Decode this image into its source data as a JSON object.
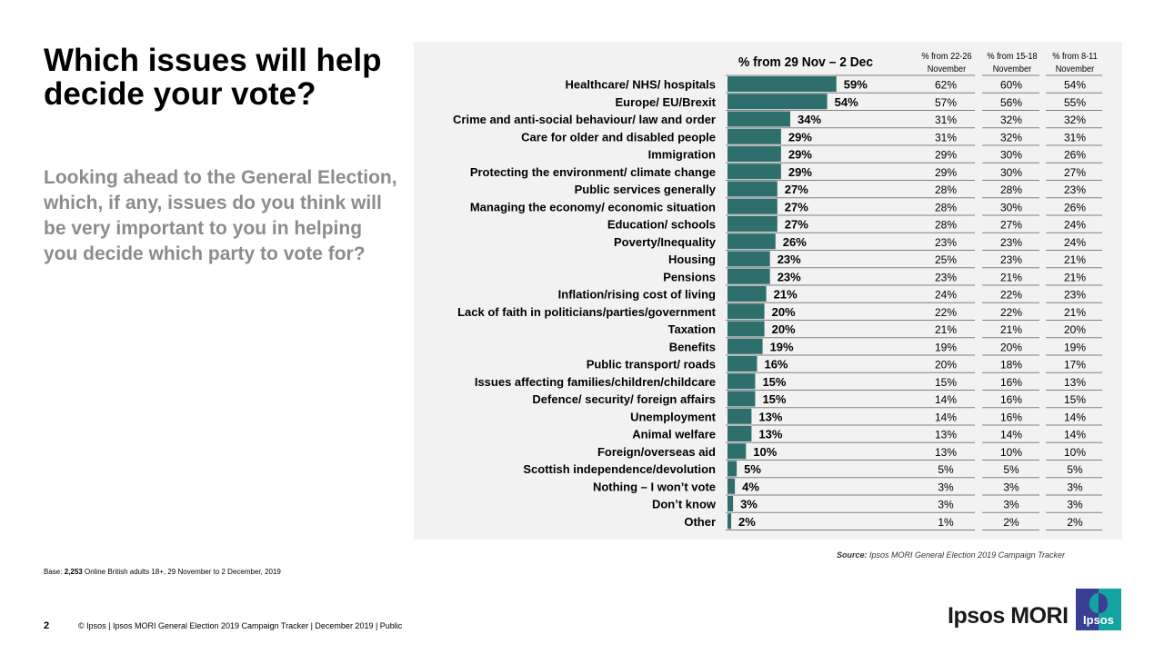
{
  "slide": {
    "title": "Which issues will help decide your vote?",
    "subtitle": "Looking ahead to the General Election, which, if any, issues do you think will be very important to you in helping you decide which party to vote for?",
    "base_label": "Base:",
    "base_count": "2,253",
    "base_text": "Online British adults 18+,  29 November to 2 December, 2019",
    "source_label": "Source:",
    "source_text": "Ipsos MORI General Election 2019 Campaign Tracker",
    "page_number": "2",
    "footer": "© Ipsos | Ipsos MORI  General Election  2019 Campaign  Tracker | December 2019 | Public",
    "brand_name": "Ipsos MORI",
    "logo_label": "Ipsos"
  },
  "colors": {
    "bar": "#2e6f6d",
    "panel": "#f2f2f2",
    "rule": "#808080",
    "logo_blue": "#3a3f96",
    "logo_teal": "#13a3a0"
  },
  "chart_data": {
    "type": "bar",
    "orientation": "horizontal",
    "title": "Which issues will help decide your vote?",
    "xlabel": "",
    "ylabel": "",
    "xlim": [
      0,
      100
    ],
    "grid": false,
    "unit": "%",
    "main_series_label": "% from 29 Nov – 2 Dec",
    "comparison_headers": [
      "% from 22-26 November",
      "% from 15-18 November",
      "% from 8-11 November"
    ],
    "categories": [
      "Healthcare/ NHS/ hospitals",
      "Europe/ EU/Brexit",
      "Crime and anti-social behaviour/ law and order",
      "Care for older and disabled people",
      "Immigration",
      "Protecting the environment/ climate change",
      "Public services generally",
      "Managing the economy/ economic situation",
      "Education/ schools",
      "Poverty/Inequality",
      "Housing",
      "Pensions",
      "Inflation/rising cost of living",
      "Lack of faith in politicians/parties/government",
      "Taxation",
      "Benefits",
      "Public transport/ roads",
      "Issues affecting families/children/childcare",
      "Defence/ security/ foreign affairs",
      "Unemployment",
      "Animal welfare",
      "Foreign/overseas aid",
      "Scottish independence/devolution",
      "Nothing – I won’t vote",
      "Don’t know",
      "Other"
    ],
    "series": [
      {
        "name": "29 Nov – 2 Dec",
        "values": [
          59,
          54,
          34,
          29,
          29,
          29,
          27,
          27,
          27,
          26,
          23,
          23,
          21,
          20,
          20,
          19,
          16,
          15,
          15,
          13,
          13,
          10,
          5,
          4,
          3,
          2
        ]
      },
      {
        "name": "22-26 November",
        "values": [
          62,
          57,
          31,
          31,
          29,
          29,
          28,
          28,
          28,
          23,
          25,
          23,
          24,
          22,
          21,
          19,
          20,
          15,
          14,
          14,
          13,
          13,
          5,
          3,
          3,
          1
        ]
      },
      {
        "name": "15-18 November",
        "values": [
          60,
          56,
          32,
          32,
          30,
          30,
          28,
          30,
          27,
          23,
          23,
          21,
          22,
          22,
          21,
          20,
          18,
          16,
          16,
          16,
          14,
          10,
          5,
          3,
          3,
          2
        ]
      },
      {
        "name": "8-11 November",
        "values": [
          54,
          55,
          32,
          31,
          26,
          27,
          23,
          26,
          24,
          24,
          21,
          21,
          23,
          21,
          20,
          19,
          17,
          13,
          15,
          14,
          14,
          10,
          5,
          3,
          3,
          2
        ]
      }
    ]
  }
}
